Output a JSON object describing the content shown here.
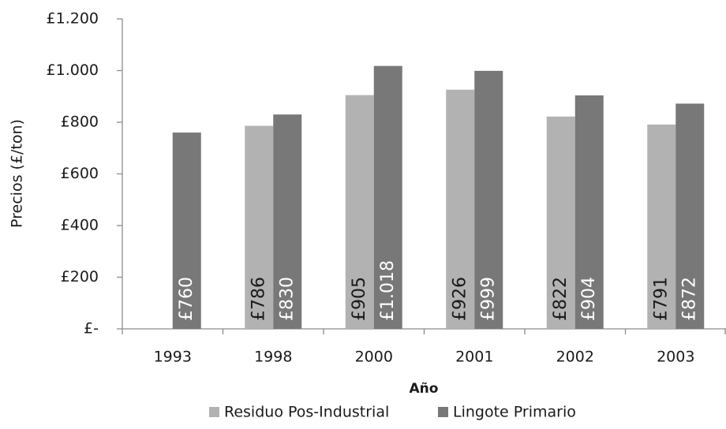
{
  "chart_data": {
    "type": "bar",
    "y_label": "Precios (£/ton)",
    "x_label": "Año",
    "categories": [
      "1993",
      "1998",
      "2000",
      "2001",
      "2002",
      "2003"
    ],
    "series": [
      {
        "name": "Residuo Pos-Industrial",
        "color": "#b2b2b2",
        "values": [
          null,
          786,
          905,
          926,
          822,
          791
        ],
        "value_labels": [
          null,
          "£786",
          "£905",
          "£926",
          "£822",
          "£791"
        ],
        "label_color": "#1a1a1a"
      },
      {
        "name": "Lingote Primario",
        "color": "#787878",
        "values": [
          760,
          830,
          1018,
          999,
          904,
          872
        ],
        "value_labels": [
          "£760",
          "£830",
          "£1.018",
          "£999",
          "£904",
          "£872"
        ],
        "label_color": "#ffffff"
      }
    ],
    "ylim": [
      0,
      1200
    ],
    "yticks": [
      {
        "value": 0,
        "label": "£-"
      },
      {
        "value": 200,
        "label": "£200"
      },
      {
        "value": 400,
        "label": "£400"
      },
      {
        "value": 600,
        "label": "£600"
      },
      {
        "value": 800,
        "label": "£800"
      },
      {
        "value": 1000,
        "label": "£1.000"
      },
      {
        "value": 1200,
        "label": "£1.200"
      }
    ],
    "legend": "bottom"
  }
}
